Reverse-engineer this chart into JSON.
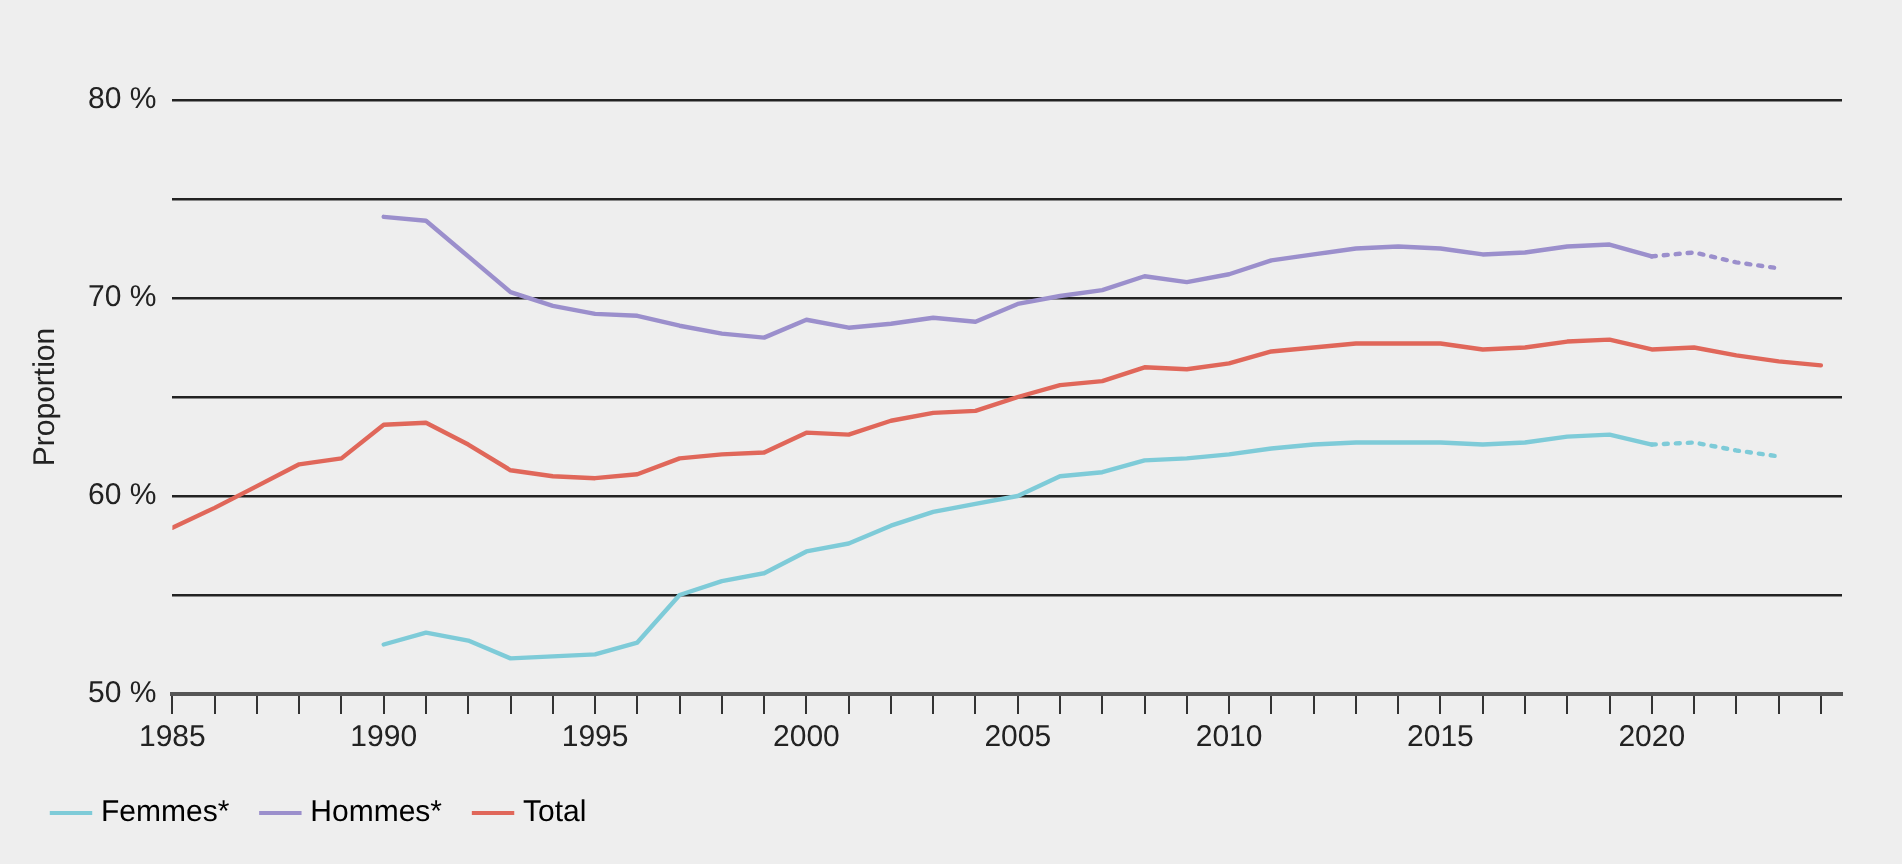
{
  "chart_data": {
    "type": "line",
    "ylabel": "Proportion",
    "legend": "bottom left",
    "grid": "y",
    "line_style": "solid",
    "marker": "none",
    "xlim": [
      1985,
      2024.5
    ],
    "xticks": [
      1985,
      {
        "value": 1986,
        "label": null
      },
      {
        "value": 1987,
        "label": null
      },
      {
        "value": 1988,
        "label": null
      },
      {
        "value": 1989,
        "label": null
      },
      1990,
      {
        "value": 1991,
        "label": null
      },
      {
        "value": 1992,
        "label": null
      },
      {
        "value": 1993,
        "label": null
      },
      {
        "value": 1994,
        "label": null
      },
      1995,
      {
        "value": 1996,
        "label": null
      },
      {
        "value": 1997,
        "label": null
      },
      {
        "value": 1998,
        "label": null
      },
      {
        "value": 1999,
        "label": null
      },
      2000,
      {
        "value": 2001,
        "label": null
      },
      {
        "value": 2002,
        "label": null
      },
      {
        "value": 2003,
        "label": null
      },
      {
        "value": 2004,
        "label": null
      },
      2005,
      {
        "value": 2006,
        "label": null
      },
      {
        "value": 2007,
        "label": null
      },
      {
        "value": 2008,
        "label": null
      },
      {
        "value": 2009,
        "label": null
      },
      2010,
      {
        "value": 2011,
        "label": null
      },
      {
        "value": 2012,
        "label": null
      },
      {
        "value": 2013,
        "label": null
      },
      {
        "value": 2014,
        "label": null
      },
      2015,
      {
        "value": 2016,
        "label": null
      },
      {
        "value": 2017,
        "label": null
      },
      {
        "value": 2018,
        "label": null
      },
      {
        "value": 2019,
        "label": null
      },
      2020,
      {
        "value": 2021,
        "label": null
      },
      {
        "value": 2022,
        "label": null
      },
      {
        "value": 2023,
        "label": null
      },
      {
        "value": 2024,
        "label": null
      }
    ],
    "ylim": [
      50,
      80
    ],
    "yticks": [
      {
        "value": 50,
        "label": "50 %"
      },
      {
        "value": 55,
        "label": null
      },
      {
        "value": 60,
        "label": "60 %"
      },
      {
        "value": 65,
        "label": null
      },
      {
        "value": 70,
        "label": "70 %"
      },
      {
        "value": 75,
        "label": null
      },
      {
        "value": 80,
        "label": "80 %"
      }
    ],
    "series": [
      {
        "name": "Femmes*",
        "color": "#7ecbd8",
        "x": [
          1990,
          1991,
          1992,
          1993,
          1994,
          1995,
          1996,
          1997,
          1998,
          1999,
          2000,
          2001,
          2002,
          2003,
          2004,
          2005,
          2006,
          2007,
          2008,
          2009,
          2010,
          2011,
          2012,
          2013,
          2014,
          2015,
          2016,
          2017,
          2018,
          2019,
          2020
        ],
        "values": [
          52.5,
          53.1,
          52.7,
          51.8,
          51.9,
          52.0,
          52.6,
          55.0,
          55.7,
          56.1,
          57.2,
          57.6,
          58.5,
          59.2,
          59.6,
          60.0,
          61.0,
          61.2,
          61.8,
          61.9,
          62.1,
          62.4,
          62.6,
          62.7,
          62.7,
          62.7,
          62.6,
          62.7,
          63.0,
          63.1,
          62.6
        ]
      },
      {
        "color": "#7ecbd8",
        "line_style": "dotted",
        "x": [
          2020,
          2021,
          2022,
          2023
        ],
        "values": [
          62.6,
          62.7,
          62.3,
          62.0
        ]
      },
      {
        "name": "Hommes*",
        "color": "#9b8fcc",
        "x": [
          1990,
          1991,
          1992,
          1993,
          1994,
          1995,
          1996,
          1997,
          1998,
          1999,
          2000,
          2001,
          2002,
          2003,
          2004,
          2005,
          2006,
          2007,
          2008,
          2009,
          2010,
          2011,
          2012,
          2013,
          2014,
          2015,
          2016,
          2017,
          2018,
          2019,
          2020
        ],
        "values": [
          74.1,
          73.9,
          72.1,
          70.3,
          69.6,
          69.2,
          69.1,
          68.6,
          68.2,
          68.0,
          68.9,
          68.5,
          68.7,
          69.0,
          68.8,
          69.7,
          70.1,
          70.4,
          71.1,
          70.8,
          71.2,
          71.9,
          72.2,
          72.5,
          72.6,
          72.5,
          72.2,
          72.3,
          72.6,
          72.7,
          72.1
        ]
      },
      {
        "color": "#9b8fcc",
        "line_style": "dotted",
        "x": [
          2020,
          2021,
          2022,
          2023
        ],
        "values": [
          72.1,
          72.3,
          71.8,
          71.5
        ]
      },
      {
        "name": "Total",
        "color": "#e0675a",
        "x": [
          1985,
          1986,
          1987,
          1988,
          1989,
          1990,
          1991,
          1992,
          1993,
          1994,
          1995,
          1996,
          1997,
          1998,
          1999,
          2000,
          2001,
          2002,
          2003,
          2004,
          2005,
          2006,
          2007,
          2008,
          2009,
          2010,
          2011,
          2012,
          2013,
          2014,
          2015,
          2016,
          2017,
          2018,
          2019,
          2020,
          2021,
          2022,
          2023,
          2024
        ],
        "values": [
          58.4,
          59.4,
          60.5,
          61.6,
          61.9,
          63.6,
          63.7,
          62.6,
          61.3,
          61.0,
          60.9,
          61.1,
          61.9,
          62.1,
          62.2,
          63.2,
          63.1,
          63.8,
          64.2,
          64.3,
          65.0,
          65.6,
          65.8,
          66.5,
          66.4,
          66.7,
          67.3,
          67.5,
          67.7,
          67.7,
          67.7,
          67.4,
          67.5,
          67.8,
          67.9,
          67.4,
          67.5,
          67.1,
          66.8,
          66.6
        ]
      }
    ]
  }
}
